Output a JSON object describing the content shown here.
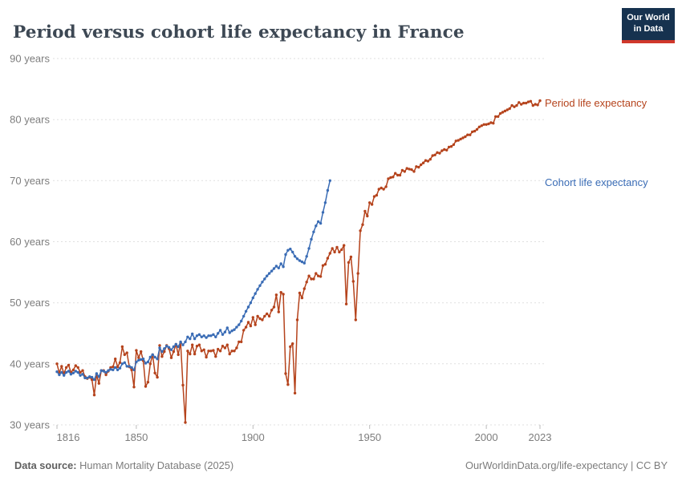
{
  "header": {
    "title": "Period versus cohort life expectancy in France",
    "logo": {
      "line1": "Our World",
      "line2": "in Data"
    }
  },
  "footer": {
    "datasource_label": "Data source:",
    "datasource_value": " Human Mortality Database (2025)",
    "credit": "OurWorldinData.org/life-expectancy | CC BY"
  },
  "chart_data": {
    "type": "line",
    "title": "Period versus cohort life expectancy in France",
    "xlabel": "",
    "ylabel": "",
    "xlim": [
      1814,
      2026
    ],
    "ylim": [
      30,
      90
    ],
    "x_ticks": [
      1816,
      1850,
      1900,
      1950,
      2000,
      2023
    ],
    "y_ticks": [
      30,
      40,
      50,
      60,
      70,
      80,
      90
    ],
    "y_tick_suffix": " years",
    "grid": "horizontal-dashed",
    "legend_position": "right-edge",
    "marker": "dot",
    "series": [
      {
        "name": "Period life expectancy",
        "color": "#b5431c",
        "start_year": 1816,
        "end_year": 2023,
        "values": [
          40.0,
          38.5,
          39.6,
          38.4,
          39.4,
          39.8,
          38.6,
          39.0,
          39.7,
          39.4,
          38.6,
          38.9,
          37.9,
          37.6,
          37.8,
          37.4,
          34.9,
          38.2,
          36.8,
          38.9,
          38.9,
          38.2,
          38.8,
          39.4,
          39.5,
          40.8,
          39.5,
          40.2,
          42.8,
          41.5,
          41.8,
          39.5,
          39.0,
          36.2,
          42.2,
          41.0,
          42.0,
          40.5,
          36.3,
          37.0,
          40.0,
          41.5,
          38.5,
          37.8,
          43.0,
          41.2,
          42.0,
          43.0,
          42.5,
          41.0,
          42.0,
          43.2,
          41.5,
          43.5,
          36.5,
          30.4,
          42.1,
          41.6,
          43.1,
          41.6,
          42.9,
          43.1,
          42.1,
          42.3,
          41.1,
          42.1,
          42.1,
          42.2,
          41.2,
          42.4,
          42.1,
          42.9,
          42.6,
          43.1,
          41.6,
          42.1,
          42.1,
          42.6,
          43.6,
          43.6,
          45.5,
          46.0,
          46.8,
          46.2,
          47.6,
          46.4,
          47.8,
          47.4,
          47.2,
          47.8,
          48.2,
          47.8,
          48.8,
          49.3,
          51.3,
          48.5,
          51.7,
          51.4,
          38.4,
          36.6,
          42.8,
          43.3,
          35.2,
          47.2,
          51.6,
          50.8,
          52.3,
          53.4,
          54.4,
          53.9,
          53.9,
          54.8,
          54.4,
          54.3,
          56.1,
          56.3,
          57.3,
          58.1,
          58.9,
          58.3,
          59.1,
          58.3,
          58.7,
          59.4,
          49.8,
          56.6,
          57.5,
          53.5,
          47.2,
          54.8,
          61.8,
          62.8,
          65.0,
          64.2,
          66.4,
          66.1,
          67.4,
          67.6,
          68.6,
          68.8,
          68.6,
          69.0,
          70.3,
          70.5,
          70.6,
          71.2,
          70.9,
          70.9,
          71.7,
          71.5,
          72.0,
          71.9,
          71.8,
          71.5,
          72.3,
          72.2,
          72.6,
          72.9,
          73.3,
          73.2,
          73.5,
          74.1,
          74.2,
          74.6,
          74.5,
          74.9,
          75.1,
          75.0,
          75.5,
          75.6,
          75.9,
          76.5,
          76.6,
          76.8,
          77.0,
          77.2,
          77.5,
          77.5,
          78.0,
          78.1,
          78.4,
          78.8,
          79.0,
          79.2,
          79.2,
          79.3,
          79.5,
          79.4,
          80.5,
          80.5,
          81.0,
          81.2,
          81.4,
          81.6,
          81.8,
          82.3,
          82.1,
          82.3,
          82.8,
          82.5,
          82.7,
          82.7,
          82.9,
          83.0,
          82.3,
          82.5,
          82.4,
          83.1
        ]
      },
      {
        "name": "Cohort life expectancy",
        "color": "#3a6cb5",
        "start_year": 1816,
        "end_year": 1933,
        "values": [
          38.7,
          38.2,
          38.6,
          38.1,
          38.6,
          38.8,
          38.3,
          38.5,
          38.8,
          38.6,
          38.1,
          38.3,
          37.7,
          37.7,
          37.9,
          37.8,
          37.4,
          38.4,
          37.9,
          38.9,
          38.8,
          38.6,
          38.9,
          39.1,
          39.0,
          39.4,
          39.0,
          39.3,
          40.0,
          40.2,
          39.6,
          39.6,
          39.4,
          39.0,
          40.3,
          40.6,
          40.7,
          40.8,
          40.1,
          40.3,
          41.1,
          41.5,
          41.1,
          40.8,
          42.6,
          42.0,
          42.5,
          42.9,
          42.7,
          42.3,
          42.8,
          43.2,
          42.8,
          43.6,
          43.1,
          43.6,
          44.4,
          44.1,
          44.9,
          44.1,
          44.6,
          44.8,
          44.4,
          44.6,
          44.3,
          44.6,
          44.6,
          44.8,
          44.4,
          45.0,
          45.5,
          44.8,
          45.2,
          45.9,
          45.1,
          45.4,
          45.6,
          46.0,
          46.4,
          47.0,
          47.8,
          48.6,
          49.3,
          50.0,
          50.8,
          51.5,
          52.2,
          52.8,
          53.4,
          53.9,
          54.4,
          54.8,
          55.2,
          55.6,
          56.0,
          55.7,
          56.4,
          55.9,
          57.9,
          58.6,
          58.8,
          58.3,
          57.6,
          57.2,
          56.9,
          56.7,
          56.5,
          57.6,
          58.9,
          60.4,
          61.6,
          62.6,
          63.3,
          63.0,
          64.8,
          66.4,
          68.4,
          70.0
        ]
      }
    ]
  }
}
